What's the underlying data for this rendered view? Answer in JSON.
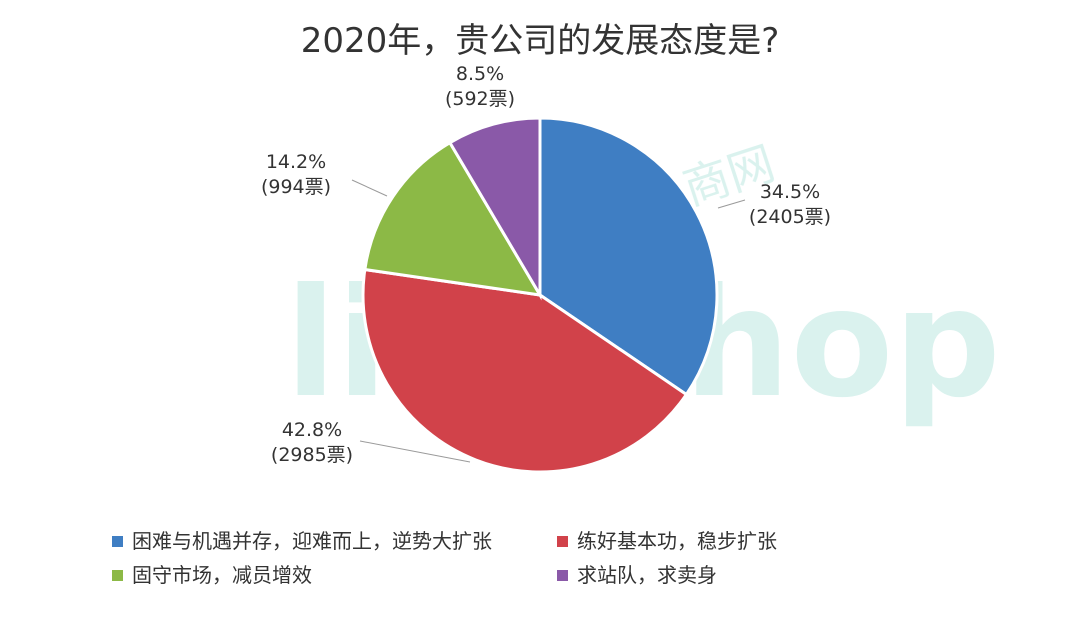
{
  "chart_data": {
    "type": "pie",
    "title": "2020年，贵公司的发展态度是?",
    "slices": [
      {
        "name": "困难与机遇并存，迎难而上，逆势大扩张",
        "percent": 34.5,
        "percent_label": "34.5%",
        "count_label": "(2405票)",
        "color": "#3F7EC3"
      },
      {
        "name": "练好基本功，稳步扩张",
        "percent": 42.8,
        "percent_label": "42.8%",
        "count_label": "(2985票)",
        "color": "#D1424A"
      },
      {
        "name": "固守市场，减员增效",
        "percent": 14.2,
        "percent_label": "14.2%",
        "count_label": "(994票)",
        "color": "#8CB946"
      },
      {
        "name": "求站队，求卖身",
        "percent": 8.5,
        "percent_label": "8.5%",
        "count_label": "(592票)",
        "color": "#8A59A8"
      }
    ],
    "legend_position": "bottom"
  },
  "watermark": {
    "text": "linkshop",
    "subtext": "商网",
    "color": "#7FD1C5"
  }
}
